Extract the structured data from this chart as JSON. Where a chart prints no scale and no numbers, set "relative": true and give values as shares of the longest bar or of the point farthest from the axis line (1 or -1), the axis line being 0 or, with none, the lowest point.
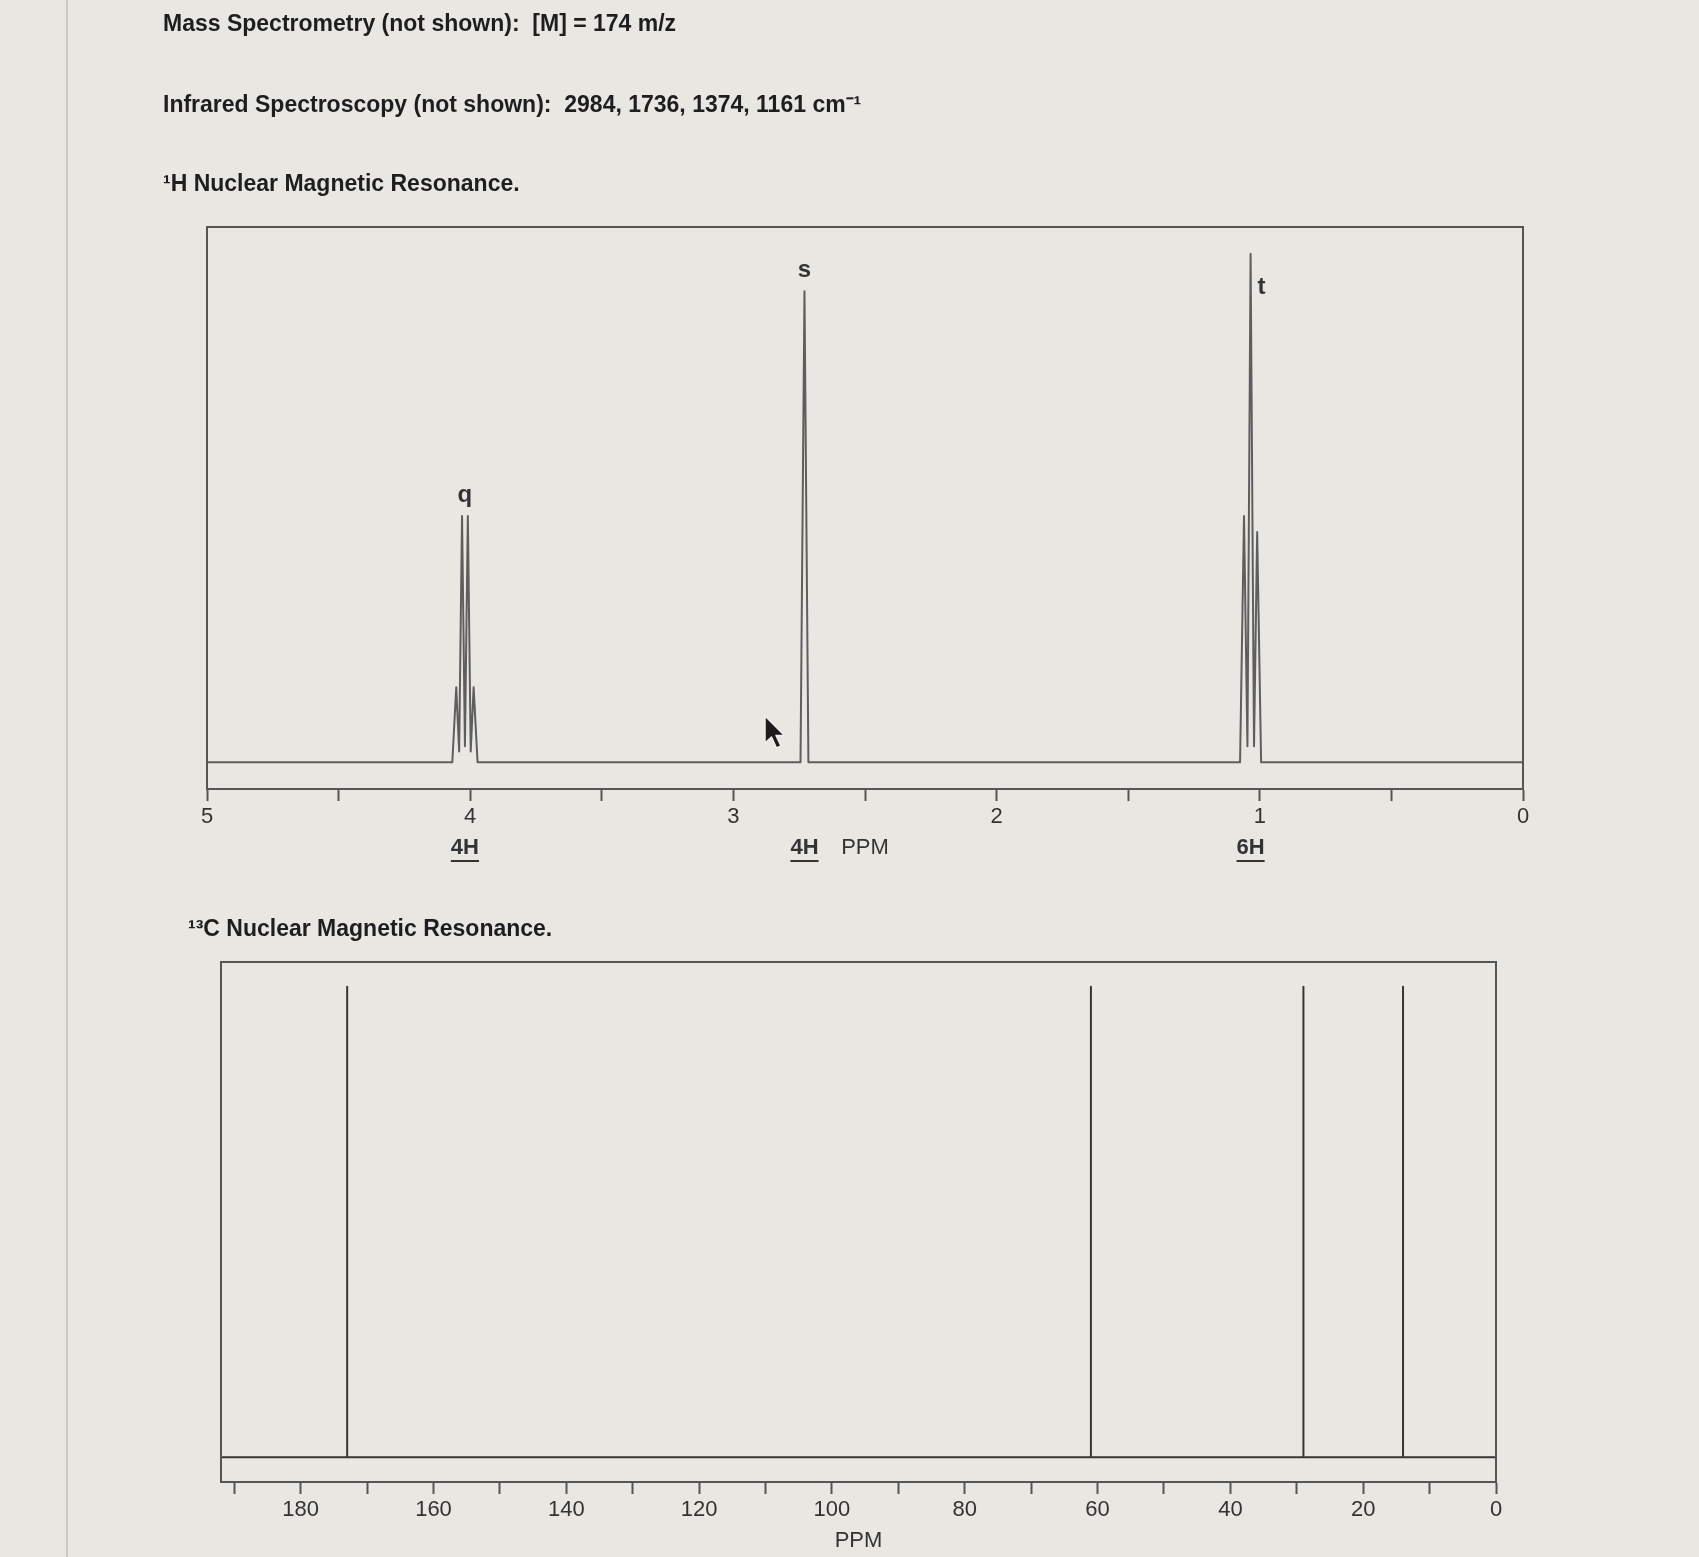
{
  "chart_data": [
    {
      "type": "line",
      "title": "¹H Nuclear Magnetic Resonance.",
      "xlabel": "PPM",
      "relative": true,
      "color": "#5e5e5e",
      "xlim": [
        5,
        0
      ],
      "xticks": [
        5,
        {
          "value": 4.5,
          "label": null
        },
        4,
        {
          "value": 3.5,
          "label": null
        },
        3,
        {
          "value": 2.5,
          "label": null
        },
        2,
        {
          "value": 1.5,
          "label": null
        },
        1,
        {
          "value": 0.5,
          "label": null
        },
        0
      ],
      "x": [
        5,
        4.068,
        4.053,
        4.042,
        4.031,
        4.02,
        4.009,
        3.998,
        3.987,
        3.972,
        2.745,
        2.73,
        2.715,
        1.075,
        1.06,
        1.047,
        1.035,
        1.022,
        1.01,
        0.995,
        0
      ],
      "values": [
        0.05,
        0.05,
        0.19,
        0.07,
        0.51,
        0.08,
        0.51,
        0.07,
        0.19,
        0.05,
        0.05,
        0.93,
        0.05,
        0.05,
        0.51,
        0.08,
        1,
        0.08,
        0.48,
        0.05,
        0.05
      ],
      "annotations": [
        "Mass Spectrometry (not shown):  [M] = 174 m/z",
        "Infrared Spectroscopy (not shown):  2984, 1736, 1374, 1161 cm⁻¹",
        "q",
        "s",
        "t",
        "4H",
        "4H",
        "6H"
      ]
    },
    {
      "type": "line",
      "title": "¹³C Nuclear Magnetic Resonance.",
      "xlabel": "PPM",
      "relative": true,
      "color": "#363636",
      "xlim": [
        192,
        0
      ],
      "xticks": [
        {
          "value": 190,
          "label": null
        },
        180,
        {
          "value": 170,
          "label": null
        },
        160,
        {
          "value": 150,
          "label": null
        },
        140,
        {
          "value": 130,
          "label": null
        },
        120,
        {
          "value": 110,
          "label": null
        },
        100,
        {
          "value": 90,
          "label": null
        },
        80,
        {
          "value": 70,
          "label": null
        },
        60,
        {
          "value": 50,
          "label": null
        },
        40,
        {
          "value": 30,
          "label": null
        },
        20,
        {
          "value": 10,
          "label": null
        },
        0
      ],
      "x": [
        192,
        173,
        173,
        173,
        61,
        61,
        61,
        29,
        29,
        29,
        14,
        14,
        14,
        0
      ],
      "values": [
        0.05,
        0.05,
        1,
        0.05,
        0.05,
        1,
        0.05,
        0.05,
        1,
        0.05,
        0.05,
        1,
        0.05,
        0.05
      ]
    }
  ]
}
